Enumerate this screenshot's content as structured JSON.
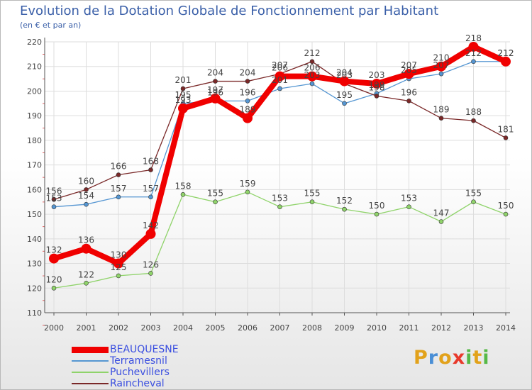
{
  "title": "Evolution de la Dotation Globale de Fonctionnement par Habitant",
  "subtitle": "(en € et par an)",
  "logo": {
    "letters": [
      "P",
      "r",
      "o",
      "x",
      "i",
      "t",
      "i"
    ]
  },
  "colors": {
    "title": "#3a5fa8",
    "axis": "#555555",
    "grid": "#dddddd",
    "label": "#444444",
    "legend_text": "#3b4fe0",
    "logo": [
      "#e2a21b",
      "#4a8fd6",
      "#e2a21b",
      "#e8392b",
      "#56b947",
      "#e2a21b",
      "#56b947"
    ]
  },
  "chart_data": {
    "type": "line",
    "title": "Evolution de la Dotation Globale de Fonctionnement par Habitant",
    "ylabel": "(en € et par an)",
    "xlabel": "",
    "x": [
      2000,
      2001,
      2002,
      2003,
      2004,
      2005,
      2006,
      2007,
      2008,
      2009,
      2010,
      2011,
      2012,
      2013,
      2014
    ],
    "yticks": [
      110,
      120,
      130,
      140,
      150,
      160,
      170,
      180,
      190,
      200,
      210,
      220
    ],
    "ylim": [
      110,
      220
    ],
    "grid": true,
    "legend": "bottom-left",
    "series": [
      {
        "name": "BEAUQUESNE",
        "color": "#f00000",
        "width": 8,
        "marker": 7,
        "values": [
          132,
          136,
          130,
          142,
          193,
          197,
          189,
          206,
          206,
          204,
          203,
          207,
          210,
          218,
          212
        ]
      },
      {
        "name": "Terramesnil",
        "color": "#5596d2",
        "width": 1.3,
        "marker": 3,
        "values": [
          153,
          154,
          157,
          157,
          195,
          196,
          196,
          201,
          203,
          195,
          199,
          205,
          207,
          212,
          212
        ]
      },
      {
        "name": "Puchevillers",
        "color": "#8fd36a",
        "width": 1.3,
        "marker": 3,
        "values": [
          120,
          122,
          125,
          126,
          158,
          155,
          159,
          153,
          155,
          152,
          150,
          153,
          147,
          155,
          150
        ]
      },
      {
        "name": "Raincheval",
        "color": "#7a2828",
        "width": 1.3,
        "marker": 3,
        "values": [
          156,
          160,
          166,
          168,
          201,
          204,
          204,
          207,
          212,
          203,
          198,
          196,
          189,
          188,
          181
        ]
      }
    ]
  }
}
